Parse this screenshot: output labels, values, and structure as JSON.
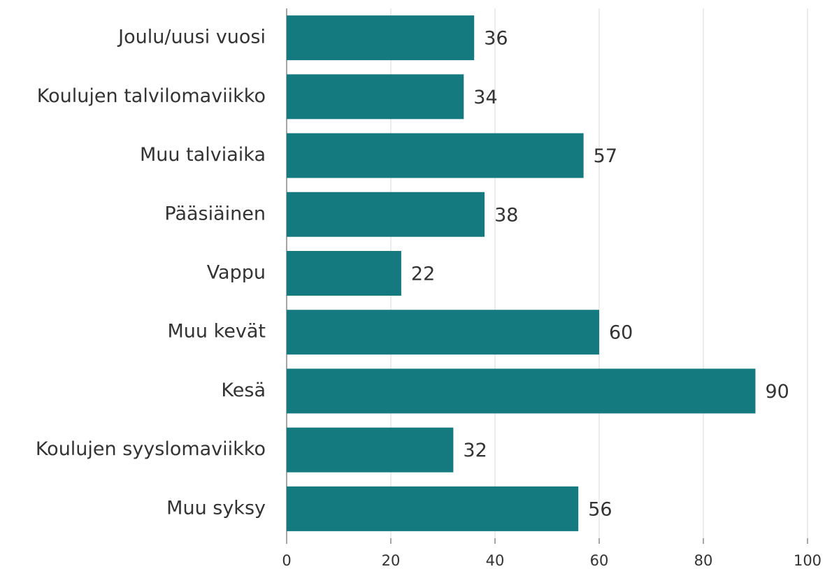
{
  "chart_data": {
    "type": "bar",
    "orientation": "horizontal",
    "categories": [
      "Joulu/uusi vuosi",
      "Koulujen talvilomaviikko",
      "Muu talviaika",
      "Pääsiäinen",
      "Vappu",
      "Muu kevät",
      "Kesä",
      "Koulujen syyslomaviikko",
      "Muu syksy"
    ],
    "values": [
      36,
      34,
      57,
      38,
      22,
      60,
      90,
      32,
      56
    ],
    "color": "#147a80",
    "xlim": [
      0,
      100
    ],
    "xticks": [
      0,
      20,
      40,
      60,
      80,
      100
    ],
    "grid": true
  }
}
